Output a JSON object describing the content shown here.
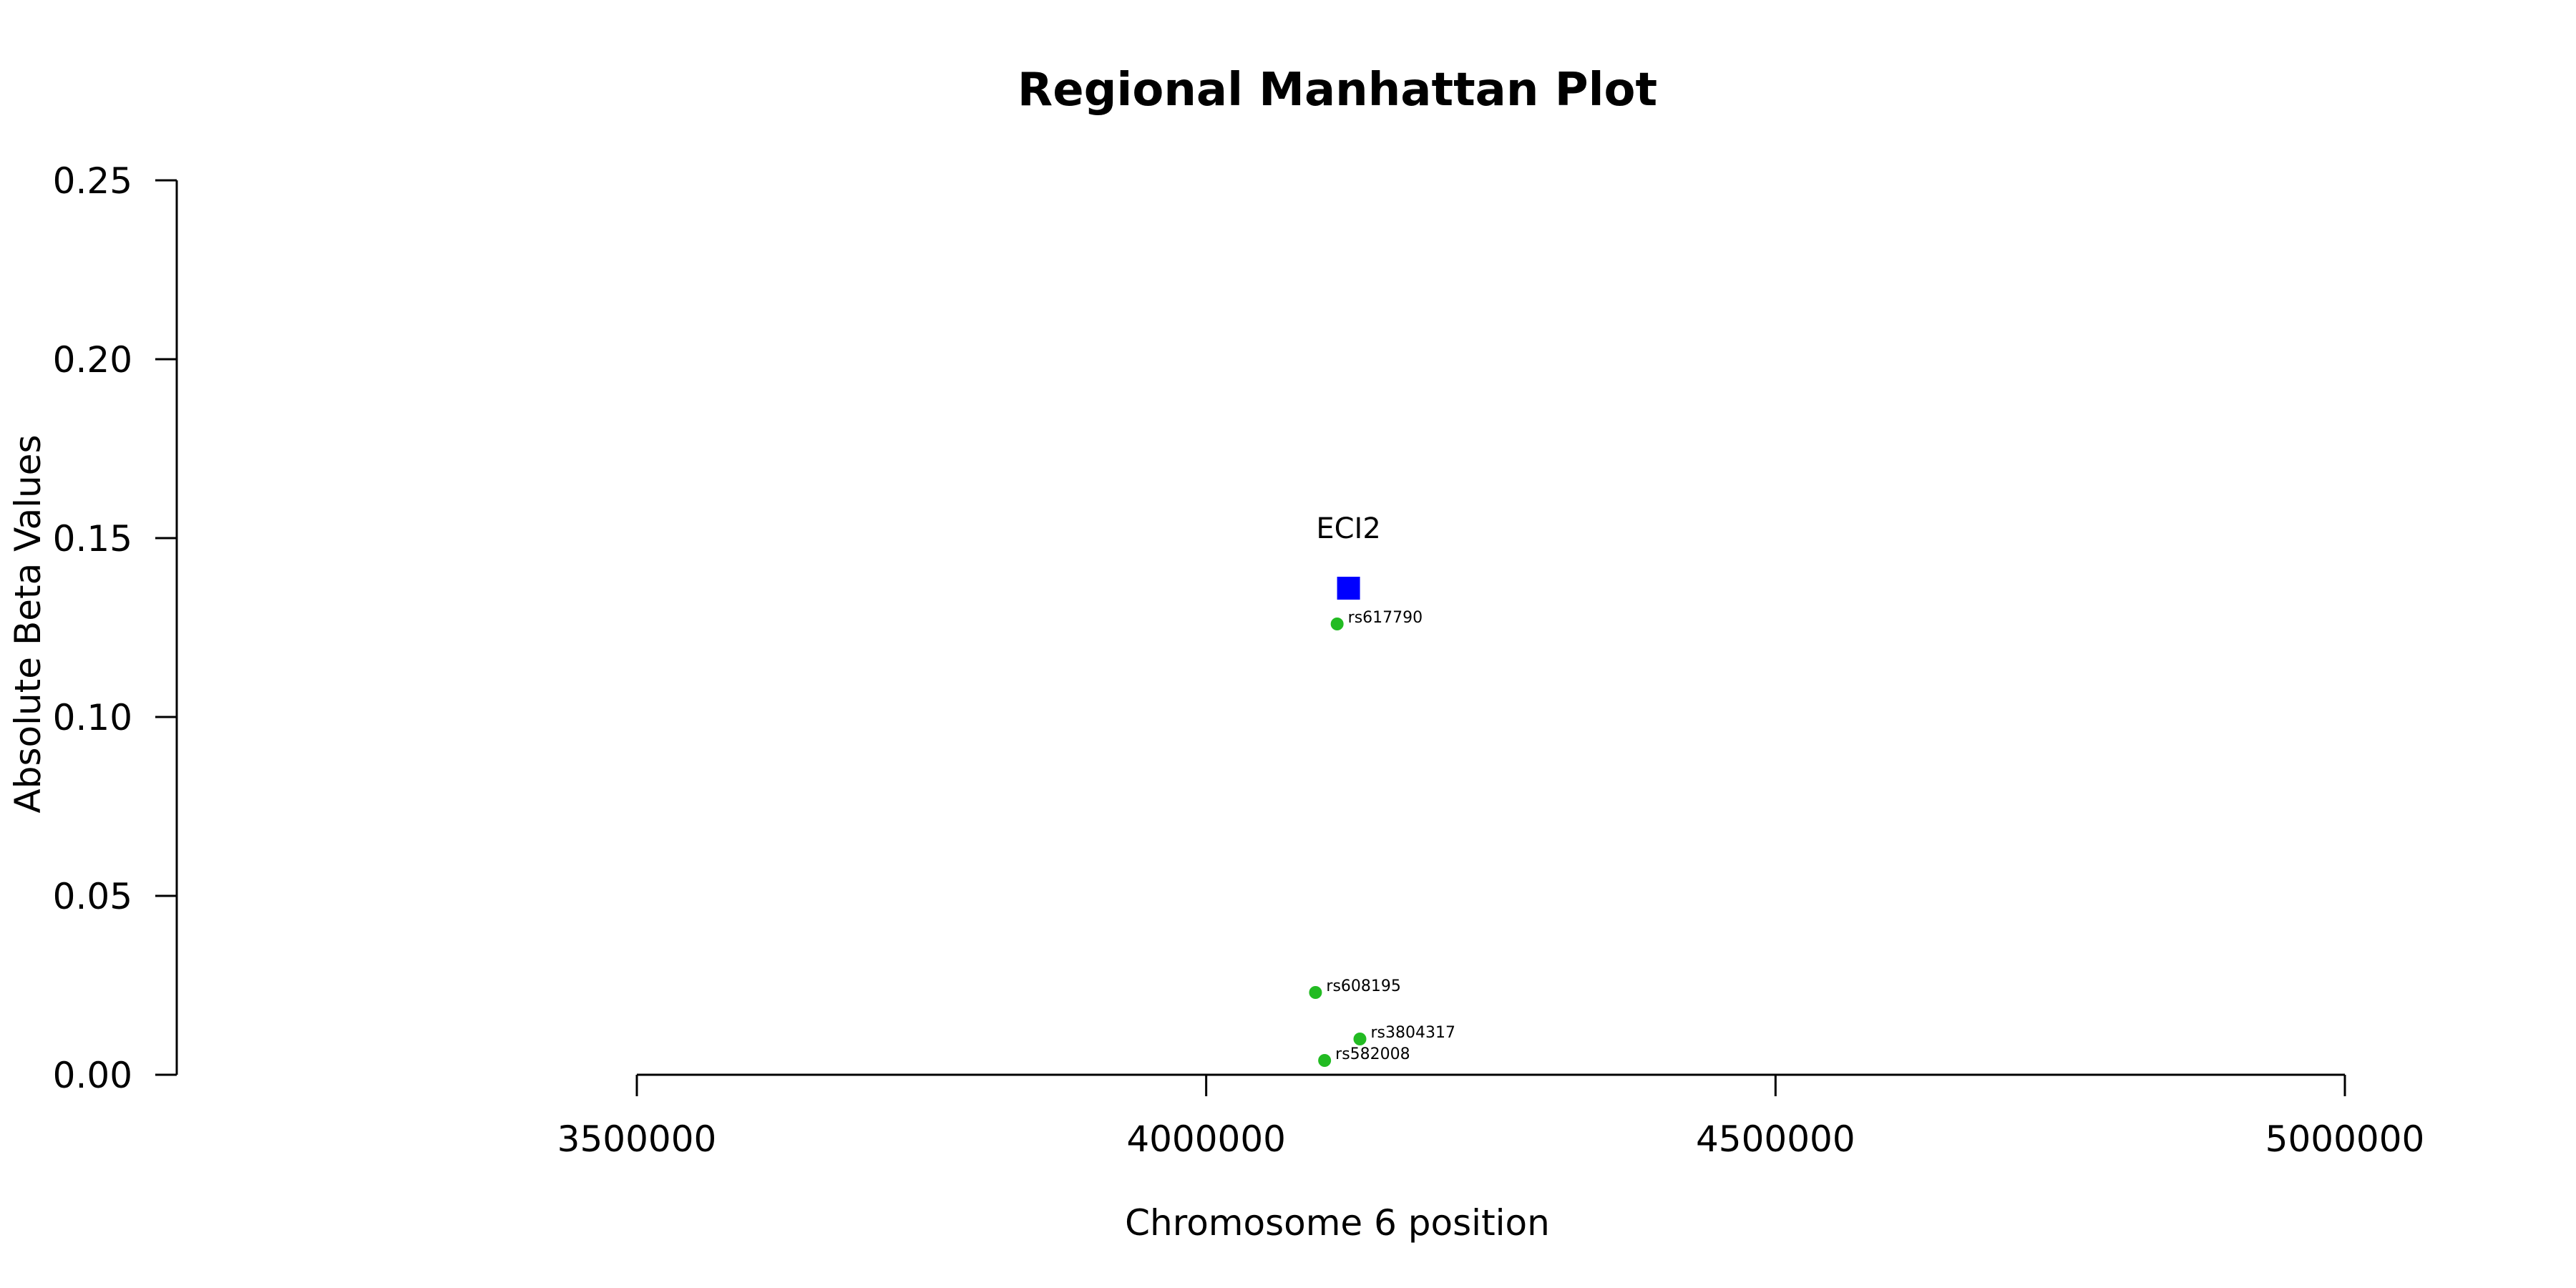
{
  "chart_data": {
    "type": "scatter",
    "title": "Regional Manhattan Plot",
    "xlabel": "Chromosome 6 position",
    "ylabel": "Absolute Beta Values",
    "xlim": [
      3500000,
      5000000
    ],
    "ylim": [
      0,
      0.25
    ],
    "x_ticks": [
      3500000,
      4000000,
      4500000,
      5000000
    ],
    "x_tick_labels": [
      "3500000",
      "4000000",
      "4500000",
      "5000000"
    ],
    "y_ticks": [
      0,
      0.05,
      0.1,
      0.15,
      0.2,
      0.25
    ],
    "y_tick_labels": [
      "0.00",
      "0.05",
      "0.10",
      "0.15",
      "0.20",
      "0.25"
    ],
    "grid": false,
    "gene": {
      "label": "ECI2",
      "x": 4125000,
      "y": 0.136,
      "color": "#0000ff",
      "marker": "square"
    },
    "snps": {
      "color": "#22bb22",
      "marker": "circle",
      "points": [
        {
          "label": "rs617790",
          "x": 4115000,
          "y": 0.126
        },
        {
          "label": "rs608195",
          "x": 4096000,
          "y": 0.023
        },
        {
          "label": "rs3804317",
          "x": 4135000,
          "y": 0.01
        },
        {
          "label": "rs582008",
          "x": 4104000,
          "y": 0.004
        }
      ]
    }
  }
}
